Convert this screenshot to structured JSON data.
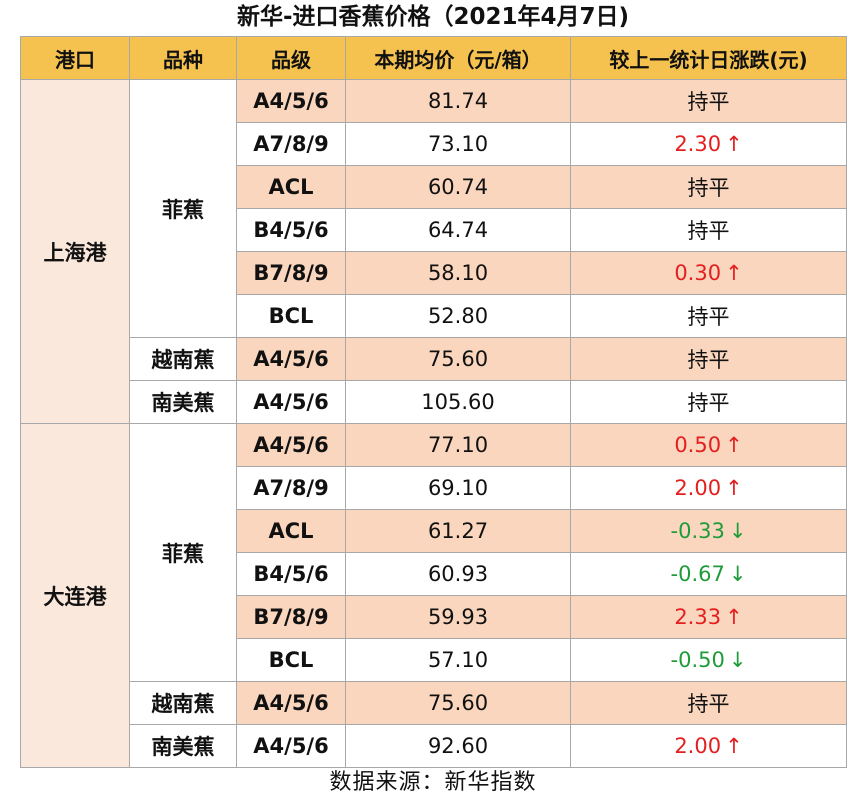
{
  "title": "新华-进口香蕉价格（2021年4月7日)",
  "headers": [
    "港口",
    "品种",
    "品级",
    "本期均价（元/箱）",
    "较上一统计日涨跌(元)"
  ],
  "footer": "数据来源：新华指数",
  "colors": {
    "header": "#f5c24f",
    "row_shade": "#f9d6bd",
    "port_bg": "#fbe8dc",
    "up": "#e41f1f",
    "down": "#1f9c3a"
  },
  "ports": [
    {
      "port": "上海港",
      "groups": [
        {
          "variety": "菲蕉",
          "rows": [
            {
              "grade": "A4/5/6",
              "price": "81.74",
              "change": "持平",
              "dir": "flat"
            },
            {
              "grade": "A7/8/9",
              "price": "73.10",
              "change": "2.30",
              "dir": "up"
            },
            {
              "grade": "ACL",
              "price": "60.74",
              "change": "持平",
              "dir": "flat"
            },
            {
              "grade": "B4/5/6",
              "price": "64.74",
              "change": "持平",
              "dir": "flat"
            },
            {
              "grade": "B7/8/9",
              "price": "58.10",
              "change": "0.30",
              "dir": "up"
            },
            {
              "grade": "BCL",
              "price": "52.80",
              "change": "持平",
              "dir": "flat"
            }
          ]
        },
        {
          "variety": "越南蕉",
          "rows": [
            {
              "grade": "A4/5/6",
              "price": "75.60",
              "change": "持平",
              "dir": "flat"
            }
          ]
        },
        {
          "variety": "南美蕉",
          "rows": [
            {
              "grade": "A4/5/6",
              "price": "105.60",
              "change": "持平",
              "dir": "flat"
            }
          ]
        }
      ]
    },
    {
      "port": "大连港",
      "groups": [
        {
          "variety": "菲蕉",
          "rows": [
            {
              "grade": "A4/5/6",
              "price": "77.10",
              "change": "0.50",
              "dir": "up"
            },
            {
              "grade": "A7/8/9",
              "price": "69.10",
              "change": "2.00",
              "dir": "up"
            },
            {
              "grade": "ACL",
              "price": "61.27",
              "change": "-0.33",
              "dir": "down"
            },
            {
              "grade": "B4/5/6",
              "price": "60.93",
              "change": "-0.67",
              "dir": "down"
            },
            {
              "grade": "B7/8/9",
              "price": "59.93",
              "change": "2.33",
              "dir": "up"
            },
            {
              "grade": "BCL",
              "price": "57.10",
              "change": "-0.50",
              "dir": "down"
            }
          ]
        },
        {
          "variety": "越南蕉",
          "rows": [
            {
              "grade": "A4/5/6",
              "price": "75.60",
              "change": "持平",
              "dir": "flat"
            }
          ]
        },
        {
          "variety": "南美蕉",
          "rows": [
            {
              "grade": "A4/5/6",
              "price": "92.60",
              "change": "2.00",
              "dir": "up"
            }
          ]
        }
      ]
    }
  ]
}
